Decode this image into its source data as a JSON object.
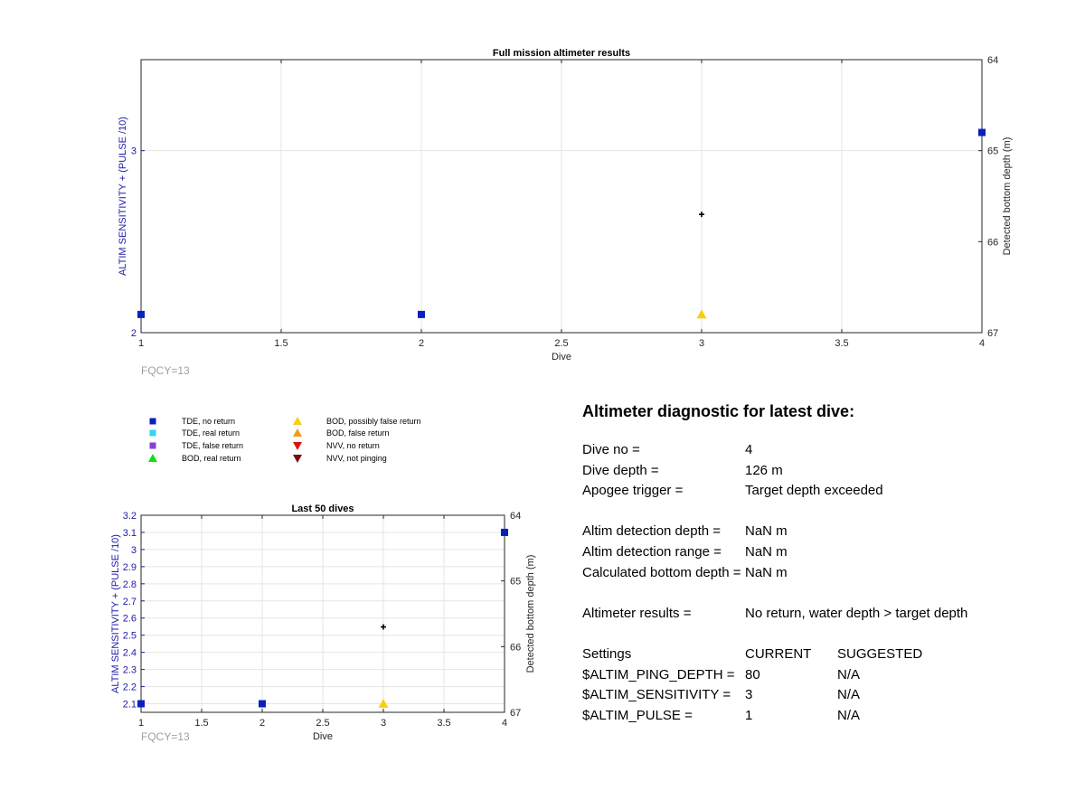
{
  "colors": {
    "tde_no_return": "#0a1fbf",
    "tde_real_return": "#33d6f0",
    "tde_false_return": "#8a3fd6",
    "bod_real_return": "#10e010",
    "bod_possibly_false": "#f5d20a",
    "bod_false_return": "#f59a14",
    "nvv_no_return": "#e01010",
    "nvv_not_pinging": "#7a0e0e",
    "left_axis": "#1a1aaa",
    "grid": "#e4e4e4"
  },
  "legend": [
    {
      "label": "TDE, no return",
      "icon": "square",
      "color_key": "tde_no_return"
    },
    {
      "label": "TDE, real return",
      "icon": "square",
      "color_key": "tde_real_return"
    },
    {
      "label": "TDE, false return",
      "icon": "square",
      "color_key": "tde_false_return"
    },
    {
      "label": "BOD, real return",
      "icon": "triangle-up",
      "color_key": "bod_real_return"
    },
    {
      "label": "BOD, possibly false return",
      "icon": "triangle-up",
      "color_key": "bod_possibly_false"
    },
    {
      "label": "BOD, false return",
      "icon": "triangle-up",
      "color_key": "bod_false_return"
    },
    {
      "label": "NVV, no return",
      "icon": "triangle-down",
      "color_key": "nvv_no_return"
    },
    {
      "label": "NVV, not pinging",
      "icon": "triangle-down",
      "color_key": "nvv_not_pinging"
    }
  ],
  "chart_data": [
    {
      "type": "scatter",
      "title": "Full mission altimeter results",
      "xlabel": "Dive",
      "ylabel": "ALTIM SENSITIVITY + (PULSE /10)",
      "y2label": "Detected bottom depth (m)",
      "xlim": [
        1,
        4
      ],
      "ylim": [
        2,
        3.5
      ],
      "y2lim": [
        64,
        67
      ],
      "y2_reversed": true,
      "xticks": [
        1,
        1.5,
        2,
        2.5,
        3,
        3.5,
        4
      ],
      "yticks": [
        2,
        3
      ],
      "y2ticks": [
        64,
        65,
        66,
        67
      ],
      "grid": true,
      "footnote": "FQCY=13",
      "series": [
        {
          "name": "TDE, no return",
          "axis": "left",
          "marker": "square",
          "color_key": "tde_no_return",
          "x": [
            1,
            2,
            4
          ],
          "y": [
            2.1,
            2.1,
            3.1
          ]
        },
        {
          "name": "BOD, possibly false return",
          "axis": "left",
          "marker": "triangle-up",
          "color_key": "bod_possibly_false",
          "x": [
            3
          ],
          "y": [
            2.1
          ]
        },
        {
          "name": "",
          "axis": "right",
          "marker": "plus",
          "color_key": "",
          "x": [
            3
          ],
          "y": [
            65.7
          ]
        }
      ]
    },
    {
      "type": "scatter",
      "title": "Last 50 dives",
      "xlabel": "Dive",
      "ylabel": "ALTIM SENSITIVITY + (PULSE /10)",
      "y2label": "Detected bottom depth (m)",
      "xlim": [
        1,
        4
      ],
      "ylim": [
        2.05,
        3.2
      ],
      "y2lim": [
        64,
        67
      ],
      "y2_reversed": true,
      "xticks": [
        1,
        1.5,
        2,
        2.5,
        3,
        3.5,
        4
      ],
      "yticks": [
        2.1,
        2.2,
        2.3,
        2.4,
        2.5,
        2.6,
        2.7,
        2.8,
        2.9,
        3,
        3.1,
        3.2
      ],
      "y2ticks": [
        64,
        65,
        66,
        67
      ],
      "grid": true,
      "footnote": "FQCY=13",
      "series": [
        {
          "name": "TDE, no return",
          "axis": "left",
          "marker": "square",
          "color_key": "tde_no_return",
          "x": [
            1,
            2,
            4
          ],
          "y": [
            2.1,
            2.1,
            3.1
          ]
        },
        {
          "name": "BOD, possibly false return",
          "axis": "left",
          "marker": "triangle-up",
          "color_key": "bod_possibly_false",
          "x": [
            3
          ],
          "y": [
            2.1
          ]
        },
        {
          "name": "",
          "axis": "right",
          "marker": "plus",
          "color_key": "",
          "x": [
            3
          ],
          "y": [
            65.7
          ]
        }
      ]
    }
  ],
  "diagnostic": {
    "heading": "Altimeter diagnostic for latest dive:",
    "dive_no_label": "Dive no =",
    "dive_no_value": "4",
    "dive_depth_label": "Dive depth =",
    "dive_depth_value": "126 m",
    "apogee_label": "Apogee trigger =",
    "apogee_value": "Target depth exceeded",
    "altim_det_depth_label": "Altim detection depth =",
    "altim_det_depth_value": "NaN m",
    "altim_det_range_label": "Altim detection range =",
    "altim_det_range_value": "NaN m",
    "calc_bottom_label": "Calculated bottom depth =",
    "calc_bottom_value": "NaN m",
    "results_label": "Altimeter results =",
    "results_value": "No return, water depth > target depth",
    "settings_label": "Settings",
    "current_header": "CURRENT",
    "suggested_header": "SUGGESTED",
    "ping_depth_label": "$ALTIM_PING_DEPTH =",
    "ping_depth_current": "80",
    "ping_depth_suggested": "N/A",
    "sensitivity_label": "$ALTIM_SENSITIVITY =",
    "sensitivity_current": "3",
    "sensitivity_suggested": "N/A",
    "pulse_label": "$ALTIM_PULSE =",
    "pulse_current": "1",
    "pulse_suggested": "N/A"
  }
}
